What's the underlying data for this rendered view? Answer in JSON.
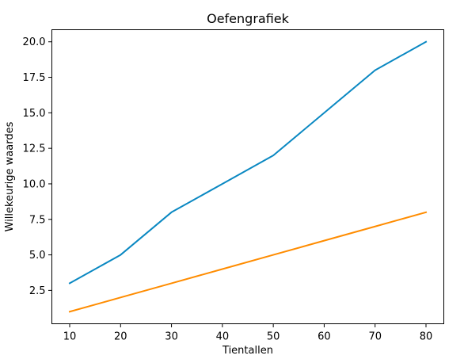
{
  "chart_data": {
    "type": "line",
    "title": "Oefengrafiek",
    "xlabel": "Tientallen",
    "ylabel": "Willekeurige waardes",
    "x": [
      10,
      20,
      30,
      40,
      50,
      60,
      70,
      80
    ],
    "series": [
      {
        "values": [
          3,
          5,
          8,
          10,
          12,
          15,
          18,
          20
        ],
        "color": "#0a88c2"
      },
      {
        "values": [
          1,
          2,
          3,
          4,
          5,
          6,
          7,
          8
        ],
        "color": "#ff8c00"
      }
    ],
    "xlim": [
      6.5,
      83.5
    ],
    "ylim": [
      0.15,
      20.85
    ],
    "xticks": [
      10,
      20,
      30,
      40,
      50,
      60,
      70,
      80
    ],
    "yticks": [
      2.5,
      5.0,
      7.5,
      10.0,
      12.5,
      15.0,
      17.5,
      20.0
    ],
    "ytick_labels": [
      "2.5",
      "5.0",
      "7.5",
      "10.0",
      "12.5",
      "15.0",
      "17.5",
      "20.0"
    ],
    "grid": false,
    "legend": "none"
  }
}
